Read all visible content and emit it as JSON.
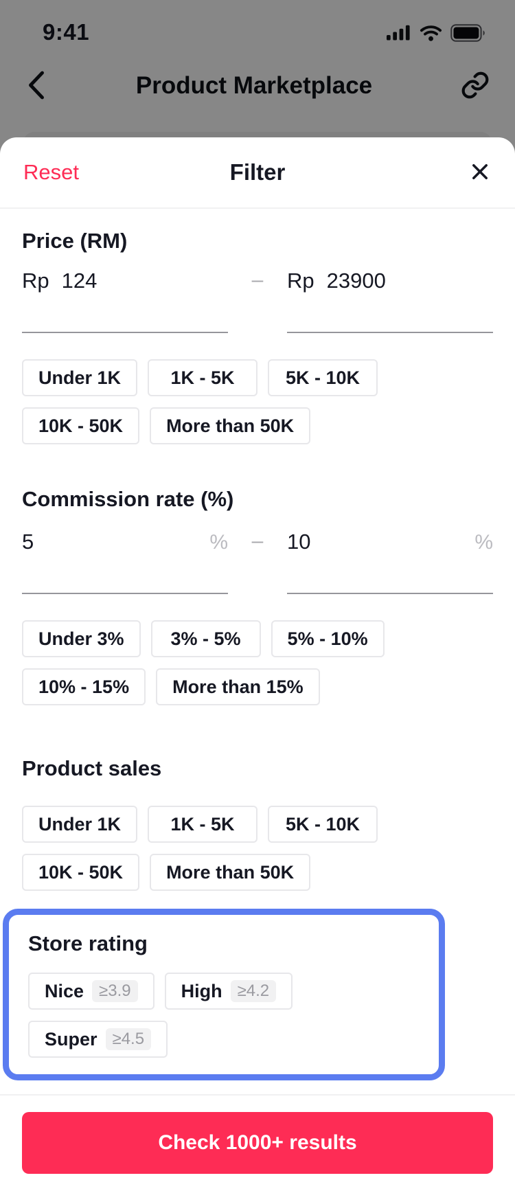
{
  "status_bar": {
    "time": "9:41"
  },
  "nav": {
    "title": "Product Marketplace"
  },
  "sheet": {
    "header": {
      "reset_label": "Reset",
      "title": "Filter"
    },
    "sections": {
      "price": {
        "label": "Price (RM)",
        "currency_prefix": "Rp",
        "min_value": "124",
        "max_value": "23900",
        "range_separator": "–",
        "chips": [
          "Under 1K",
          "1K - 5K",
          "5K - 10K",
          "10K - 50K",
          "More than 50K"
        ]
      },
      "commission": {
        "label": "Commission rate (%)",
        "min_value": "5",
        "max_value": "10",
        "unit_suffix": "%",
        "range_separator": "–",
        "chips": [
          "Under 3%",
          "3% - 5%",
          "5% - 10%",
          "10% - 15%",
          "More than 15%"
        ]
      },
      "product_sales": {
        "label": "Product sales",
        "chips": [
          "Under 1K",
          "1K - 5K",
          "5K - 10K",
          "10K - 50K",
          "More than 50K"
        ]
      },
      "store_rating": {
        "label": "Store rating",
        "options": [
          {
            "name": "Nice",
            "threshold": "≥3.9"
          },
          {
            "name": "High",
            "threshold": "≥4.2"
          },
          {
            "name": "Super",
            "threshold": "≥4.5"
          }
        ]
      }
    },
    "submit_label": "Check 1000+ results"
  },
  "colors": {
    "accent_pink": "#FE2C55",
    "highlight_blue": "#5B7CF0",
    "text_dark": "#161823",
    "chip_border": "#E7E7EA",
    "badge_bg": "#F1F1F2",
    "badge_text": "#9A9AA0",
    "scrim": "rgba(0,0,0,0.47)"
  }
}
